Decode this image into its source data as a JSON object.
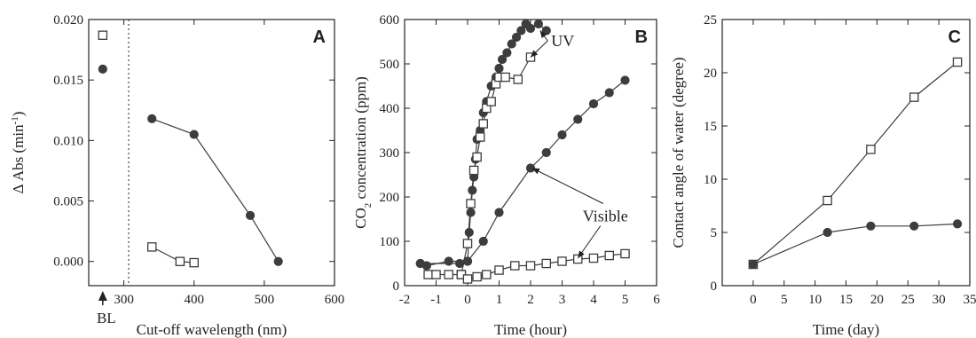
{
  "colors": {
    "filled": "#3d3d3d",
    "open_fill": "#ffffff",
    "line": "#3d3d3d",
    "axis": "#222222"
  },
  "chart_data": [
    {
      "type": "scatter",
      "panel": "A",
      "xlabel": "Cut-off wavelength (nm)",
      "ylabel": "Δ Abs (min⁻¹)",
      "ylabel_main": "Δ Abs (min",
      "ylabel_sup": "-1",
      "ylabel_close": ")",
      "xlim": [
        250,
        600
      ],
      "ylim": [
        -0.002,
        0.02
      ],
      "xticks": [
        300,
        400,
        500,
        600
      ],
      "yticks": [
        0.0,
        0.005,
        0.01,
        0.015,
        0.02
      ],
      "ytick_labels": [
        "0.000",
        "0.005",
        "0.010",
        "0.015",
        "0.020"
      ],
      "baseline_label": "BL",
      "baseline_x": 270,
      "series": [
        {
          "marker": "filled-circle",
          "x": [
            340,
            400,
            480,
            520
          ],
          "y": [
            0.0118,
            0.0105,
            0.0038,
            0.0
          ],
          "baseline": 0.0159
        },
        {
          "marker": "open-square",
          "x": [
            340,
            380,
            400
          ],
          "y": [
            0.0012,
            0.0,
            -0.0001
          ],
          "baseline": 0.0187
        }
      ]
    },
    {
      "type": "line",
      "panel": "B",
      "xlabel": "Time (hour)",
      "ylabel": "CO2 concentration (ppm)",
      "ylabel_pre": "CO",
      "ylabel_sub": "2",
      "ylabel_post": " concentration (ppm)",
      "xlim": [
        -2,
        6
      ],
      "ylim": [
        0,
        600
      ],
      "xticks": [
        -2,
        -1,
        0,
        1,
        2,
        3,
        4,
        5,
        6
      ],
      "yticks": [
        0,
        100,
        200,
        300,
        400,
        500,
        600
      ],
      "annotations": [
        {
          "text": "UV",
          "x": 2.6,
          "y": 540
        },
        {
          "text": "Visible",
          "x": 3.6,
          "y": 145
        }
      ],
      "series": [
        {
          "marker": "filled-circle",
          "condition": "UV",
          "x": [
            -1.5,
            -1.3,
            -0.6,
            0,
            0.05,
            0.1,
            0.15,
            0.2,
            0.25,
            0.3,
            0.4,
            0.5,
            0.6,
            0.75,
            0.9,
            1.0,
            1.1,
            1.25,
            1.4,
            1.55,
            1.7,
            1.85,
            2.0,
            2.25,
            2.5
          ],
          "y": [
            50,
            45,
            55,
            55,
            120,
            165,
            215,
            245,
            285,
            330,
            350,
            390,
            415,
            450,
            470,
            490,
            510,
            525,
            545,
            560,
            575,
            590,
            580,
            590,
            575
          ]
        },
        {
          "marker": "open-square",
          "condition": "UV",
          "x": [
            -0.2,
            0,
            0.1,
            0.2,
            0.3,
            0.4,
            0.5,
            0.6,
            0.75,
            0.9,
            1.0,
            1.2,
            1.6,
            2.0
          ],
          "y": [
            25,
            95,
            185,
            260,
            290,
            335,
            365,
            400,
            415,
            455,
            470,
            470,
            465,
            515
          ]
        },
        {
          "marker": "filled-circle",
          "condition": "Visible",
          "x": [
            -1.5,
            -0.25,
            0,
            0.5,
            1.0,
            2.0,
            2.5,
            3.0,
            3.5,
            4.0,
            4.5,
            5.0
          ],
          "y": [
            50,
            50,
            55,
            100,
            165,
            265,
            300,
            340,
            375,
            410,
            435,
            463
          ]
        },
        {
          "marker": "open-square",
          "condition": "Visible",
          "x": [
            -1.25,
            -1.0,
            -0.6,
            -0.2,
            0,
            0.3,
            0.6,
            1.0,
            1.5,
            2.0,
            2.5,
            3.0,
            3.5,
            4.0,
            4.5,
            5.0
          ],
          "y": [
            25,
            25,
            25,
            25,
            15,
            20,
            25,
            35,
            45,
            45,
            50,
            55,
            60,
            62,
            68,
            72
          ]
        }
      ]
    },
    {
      "type": "line",
      "panel": "C",
      "xlabel": "Time (day)",
      "ylabel": "Contact angle of water (degree)",
      "xlim": [
        -5,
        35
      ],
      "ylim": [
        0,
        25
      ],
      "xticks": [
        0,
        5,
        10,
        15,
        20,
        25,
        30,
        35
      ],
      "yticks": [
        0,
        5,
        10,
        15,
        20,
        25
      ],
      "series": [
        {
          "marker": "open-square",
          "x": [
            0,
            12,
            19,
            26,
            33
          ],
          "y": [
            2.0,
            8.0,
            12.8,
            17.7,
            21.0
          ]
        },
        {
          "marker": "filled-circle",
          "x": [
            0,
            12,
            19,
            26,
            33
          ],
          "y": [
            2.0,
            5.0,
            5.6,
            5.6,
            5.8
          ]
        }
      ]
    }
  ]
}
